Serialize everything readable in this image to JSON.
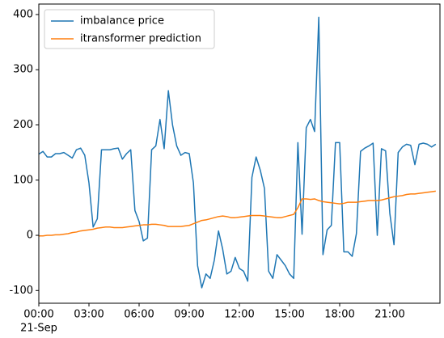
{
  "chart_data": {
    "type": "line",
    "date_label": "21-Sep",
    "x": [
      0,
      0.25,
      0.5,
      0.75,
      1,
      1.25,
      1.5,
      1.75,
      2,
      2.25,
      2.5,
      2.75,
      3,
      3.25,
      3.5,
      3.75,
      4,
      4.25,
      4.5,
      4.75,
      5,
      5.25,
      5.5,
      5.75,
      6,
      6.25,
      6.5,
      6.75,
      7,
      7.25,
      7.5,
      7.75,
      8,
      8.25,
      8.5,
      8.75,
      9,
      9.25,
      9.5,
      9.75,
      10,
      10.25,
      10.5,
      10.75,
      11,
      11.25,
      11.5,
      11.75,
      12,
      12.25,
      12.5,
      12.75,
      13,
      13.25,
      13.5,
      13.75,
      14,
      14.25,
      14.5,
      14.75,
      15,
      15.25,
      15.5,
      15.75,
      16,
      16.25,
      16.5,
      16.75,
      17,
      17.25,
      17.5,
      17.75,
      18,
      18.25,
      18.5,
      18.75,
      19,
      19.25,
      19.5,
      19.75,
      20,
      20.25,
      20.5,
      20.75,
      21,
      21.25,
      21.5,
      21.75,
      22,
      22.25,
      22.5,
      22.75,
      23,
      23.25,
      23.5,
      23.75
    ],
    "series": [
      {
        "name": "imbalance price",
        "color": "#1f77b4",
        "values": [
          147,
          152,
          142,
          142,
          148,
          148,
          150,
          145,
          140,
          155,
          158,
          145,
          95,
          15,
          30,
          155,
          155,
          155,
          157,
          158,
          138,
          148,
          155,
          45,
          25,
          -10,
          -5,
          155,
          162,
          210,
          157,
          262,
          200,
          162,
          145,
          150,
          148,
          95,
          -55,
          -95,
          -70,
          -78,
          -45,
          8,
          -25,
          -70,
          -65,
          -40,
          -60,
          -65,
          -83,
          105,
          142,
          118,
          85,
          -65,
          -78,
          -35,
          -45,
          -55,
          -70,
          -78,
          168,
          2,
          195,
          210,
          188,
          395,
          -35,
          10,
          18,
          168,
          168,
          -30,
          -30,
          -38,
          3,
          152,
          158,
          162,
          167,
          0,
          157,
          153,
          40,
          -17,
          150,
          160,
          165,
          163,
          128,
          165,
          167,
          165,
          160,
          165
        ]
      },
      {
        "name": "itransformer prediction",
        "color": "#ff7f0e",
        "values": [
          -1,
          -1,
          0,
          0,
          1,
          1,
          2,
          3,
          5,
          6,
          8,
          9,
          10,
          11,
          13,
          14,
          15,
          15,
          14,
          14,
          14,
          15,
          16,
          17,
          18,
          19,
          19,
          20,
          20,
          19,
          18,
          16,
          16,
          16,
          16,
          17,
          18,
          21,
          24,
          27,
          28,
          30,
          32,
          34,
          35,
          34,
          32,
          32,
          33,
          34,
          35,
          36,
          36,
          36,
          35,
          34,
          33,
          32,
          32,
          34,
          36,
          38,
          50,
          66,
          66,
          65,
          66,
          63,
          61,
          60,
          59,
          58,
          57,
          58,
          60,
          60,
          60,
          61,
          62,
          63,
          63,
          63,
          64,
          66,
          68,
          70,
          71,
          72,
          74,
          75,
          75,
          76,
          77,
          78,
          79,
          80
        ]
      }
    ],
    "xlim": [
      0,
      24
    ],
    "xticks": [
      {
        "value": 0,
        "label": "00:00"
      },
      {
        "value": 3,
        "label": "03:00"
      },
      {
        "value": 6,
        "label": "06:00"
      },
      {
        "value": 9,
        "label": "09:00"
      },
      {
        "value": 12,
        "label": "12:00"
      },
      {
        "value": 15,
        "label": "15:00"
      },
      {
        "value": 18,
        "label": "18:00"
      },
      {
        "value": 21,
        "label": "21:00"
      }
    ],
    "ylim": [
      -123,
      419
    ],
    "yticks": [
      -100,
      0,
      100,
      200,
      300,
      400
    ],
    "grid": false,
    "legend": "upper left"
  }
}
